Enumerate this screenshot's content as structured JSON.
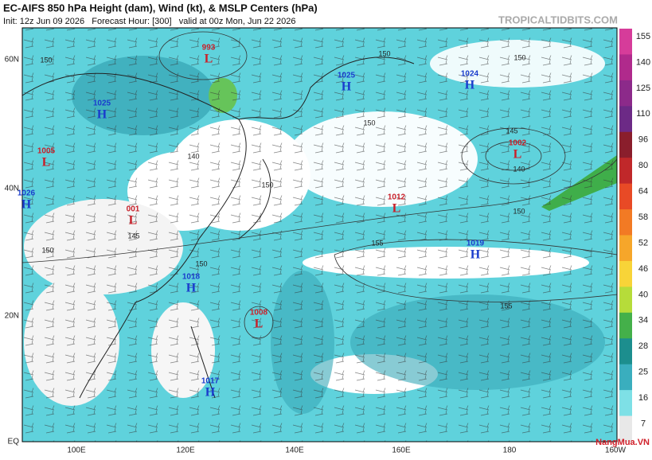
{
  "header": {
    "title": "EC-AIFS 850 hPa Height (dam), Wind (kt), & MSLP Centers (hPa)",
    "subtitle": "Init: 12z Jun 09 2026   Forecast Hour: [300]   valid at 00z Mon, Jun 22 2026",
    "site": "TROPICALTIDBITS.COM"
  },
  "latitude_labels": [
    "60N",
    "40N",
    "20N",
    "EQ"
  ],
  "longitude_labels": [
    "100E",
    "120E",
    "140E",
    "160E",
    "180",
    "160W"
  ],
  "colorbar": [
    {
      "label": "155",
      "color": "#d63c9a"
    },
    {
      "label": "140",
      "color": "#b02a8c"
    },
    {
      "label": "125",
      "color": "#8c2a8a"
    },
    {
      "label": "110",
      "color": "#6c2a86"
    },
    {
      "label": "96",
      "color": "#8a1e2c"
    },
    {
      "label": "80",
      "color": "#c0282a"
    },
    {
      "label": "64",
      "color": "#e84a26"
    },
    {
      "label": "58",
      "color": "#f27a24"
    },
    {
      "label": "52",
      "color": "#f6a62a"
    },
    {
      "label": "46",
      "color": "#f8d438"
    },
    {
      "label": "40",
      "color": "#b6dc3a"
    },
    {
      "label": "34",
      "color": "#44b04a"
    },
    {
      "label": "28",
      "color": "#1c8e8e"
    },
    {
      "label": "25",
      "color": "#3aaebe"
    },
    {
      "label": "16",
      "color": "#7ee0e6"
    },
    {
      "label": "7",
      "color": "#e8e8e8"
    }
  ],
  "pressure_centers": [
    {
      "value": "993",
      "letter": "L"
    },
    {
      "value": "1025",
      "letter": "H"
    },
    {
      "value": "1005",
      "letter": "L"
    },
    {
      "value": "1026",
      "letter": "H"
    },
    {
      "value": "001",
      "letter": "L"
    },
    {
      "value": "1025",
      "letter": "H"
    },
    {
      "value": "1024",
      "letter": "H"
    },
    {
      "value": "1002",
      "letter": "L"
    },
    {
      "value": "1012",
      "letter": "L"
    },
    {
      "value": "1019",
      "letter": "H"
    },
    {
      "value": "1018",
      "letter": "H"
    },
    {
      "value": "1008",
      "letter": "L"
    },
    {
      "value": "1017",
      "letter": "H"
    }
  ],
  "contour_labels": [
    "150",
    "150",
    "150",
    "150",
    "140",
    "150",
    "150",
    "155",
    "155",
    "150",
    "150",
    "145",
    "140",
    "145"
  ],
  "watermark": "NangMua.VN"
}
